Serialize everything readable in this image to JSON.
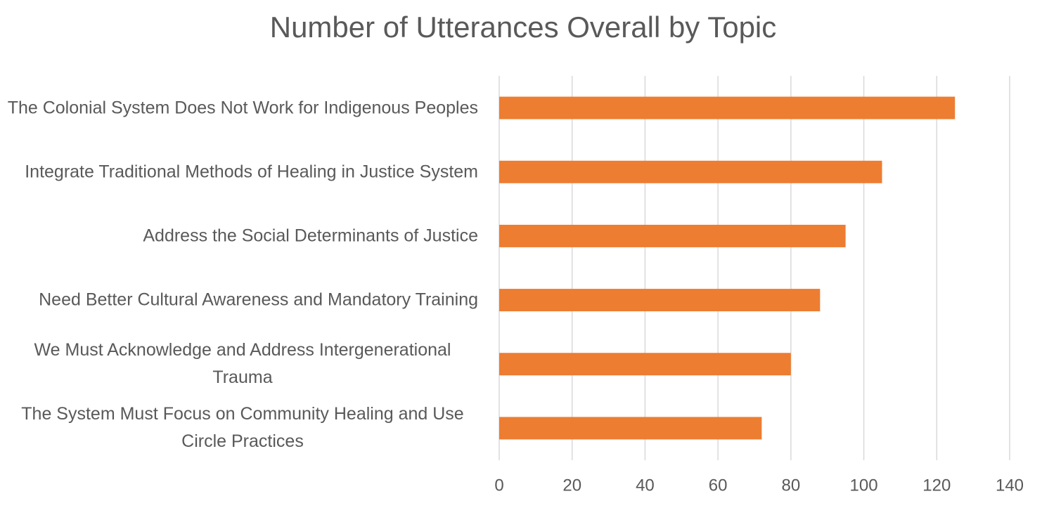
{
  "chart_data": {
    "type": "bar",
    "orientation": "horizontal",
    "title": "Number of Utterances Overall by Topic",
    "categories": [
      "The Colonial System Does Not Work for Indigenous Peoples",
      "Integrate Traditional Methods of Healing in Justice System",
      "Address the Social Determinants of Justice",
      "Need Better Cultural Awareness and Mandatory Training",
      "We Must Acknowledge and Address Intergenerational Trauma",
      "The System Must Focus on Community Healing and Use Circle Practices"
    ],
    "values": [
      125,
      105,
      95,
      88,
      80,
      72
    ],
    "color": "#ed7d31",
    "xlim": [
      0,
      140
    ],
    "xticks": [
      0,
      20,
      40,
      60,
      80,
      100,
      120,
      140
    ],
    "grid": true
  }
}
